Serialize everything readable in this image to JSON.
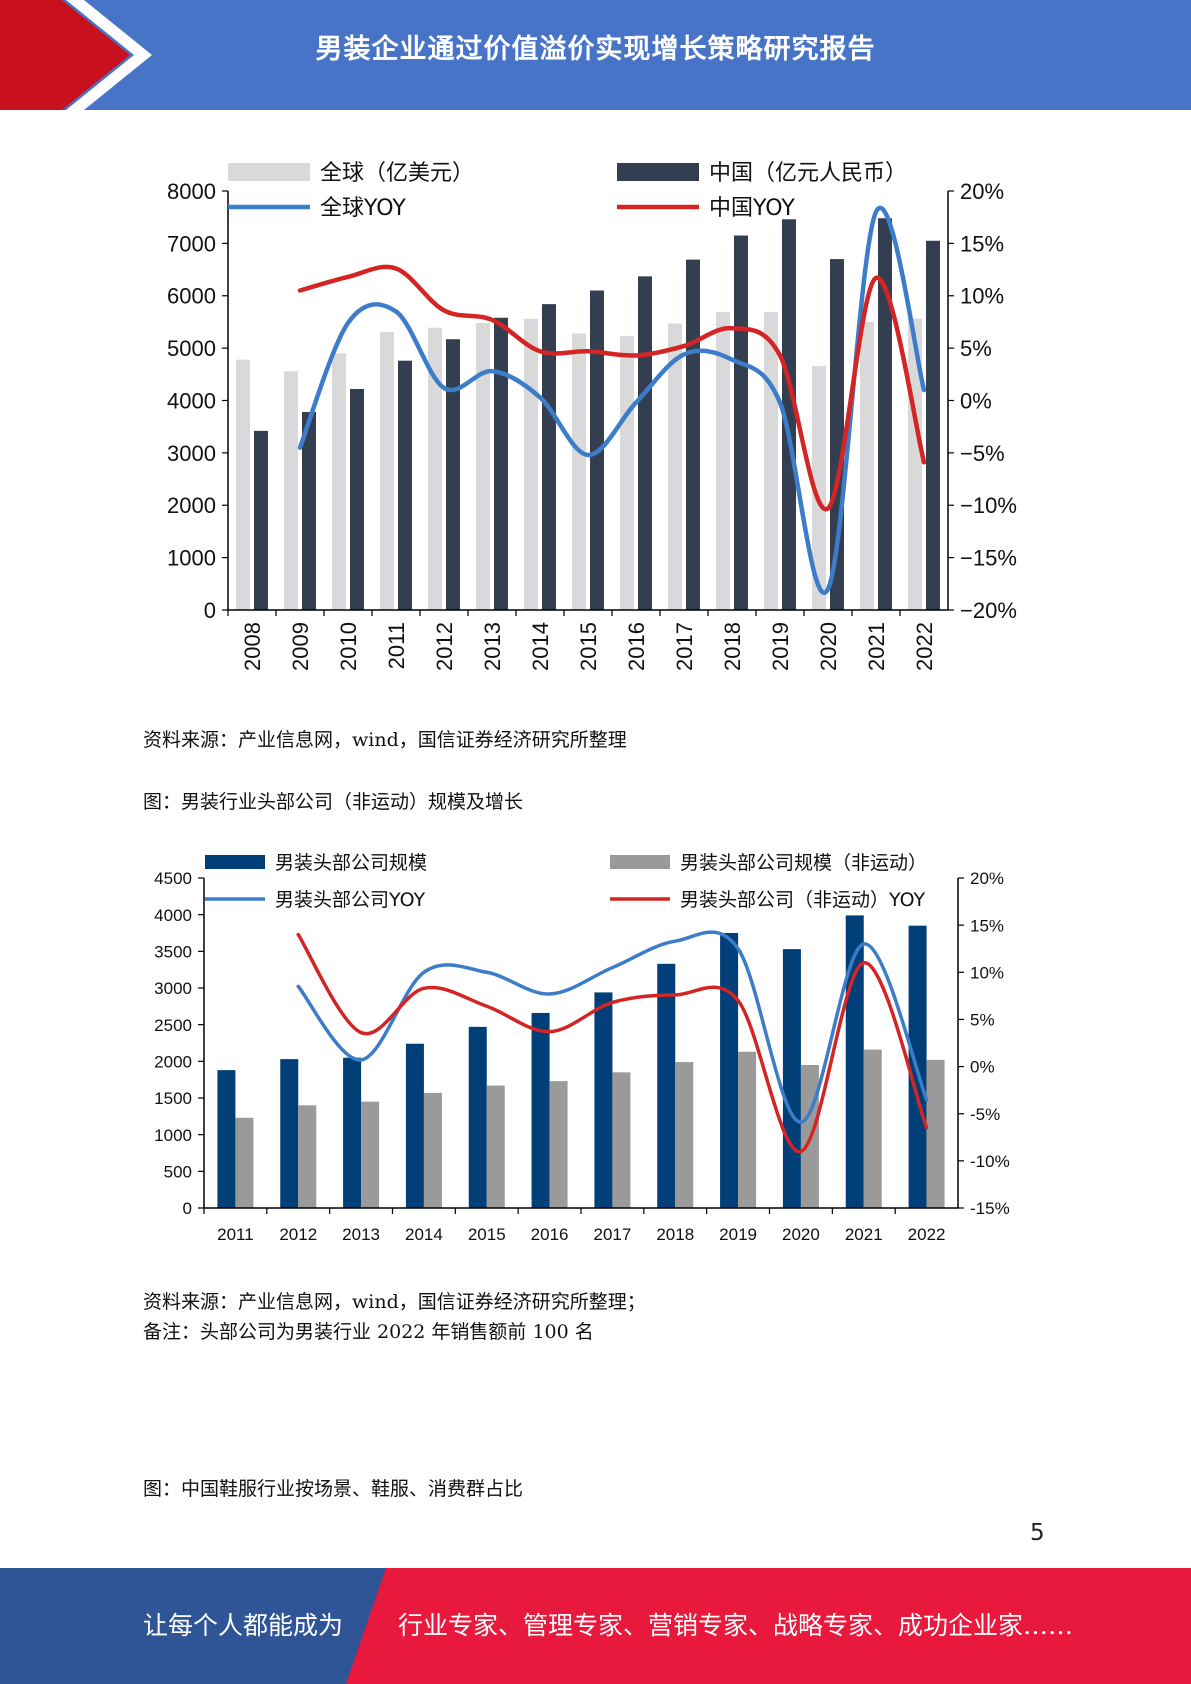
{
  "header": {
    "title": "男装企业通过价值溢价实现增长策略研究报告"
  },
  "charts": {
    "chart_data": [
      {
        "type": "bar",
        "categories": [
          "2008",
          "2009",
          "2010",
          "2011",
          "2012",
          "2013",
          "2014",
          "2015",
          "2016",
          "2017",
          "2018",
          "2019",
          "2020",
          "2021",
          "2022"
        ],
        "series": [
          {
            "name": "全球（亿美元）",
            "kind": "bar",
            "axis": "left",
            "color": "#d9d9d9",
            "values": [
              4780,
              4560,
              4900,
              5310,
              5390,
              5480,
              5560,
              5280,
              5230,
              5470,
              5690,
              5690,
              4660,
              5500,
              5560
            ]
          },
          {
            "name": "中国（亿元人民币）",
            "kind": "bar",
            "axis": "left",
            "color": "#333f50",
            "values": [
              3420,
              3780,
              4220,
              4760,
              5170,
              5580,
              5840,
              6100,
              6370,
              6690,
              7150,
              7460,
              6700,
              7480,
              7050
            ]
          },
          {
            "name": "全球YOY",
            "kind": "line",
            "axis": "right",
            "color": "#3d7cc9",
            "values": [
              null,
              -4.5,
              7.4,
              8.5,
              1.2,
              2.8,
              0.3,
              -5.2,
              -0.2,
              4.4,
              3.9,
              -0.2,
              -18.0,
              18.0,
              1.0
            ]
          },
          {
            "name": "中国YOY",
            "kind": "line",
            "axis": "right",
            "color": "#d42424",
            "values": [
              null,
              10.5,
              11.8,
              12.6,
              8.6,
              7.7,
              4.7,
              4.7,
              4.3,
              5.2,
              6.9,
              4.3,
              -10.3,
              11.7,
              -5.9
            ]
          }
        ],
        "yleft": {
          "min": 0,
          "max": 8000,
          "ticks": [
            "0",
            "1000",
            "2000",
            "3000",
            "4000",
            "5000",
            "6000",
            "7000",
            "8000"
          ]
        },
        "yright": {
          "min": -20,
          "max": 20,
          "ticks": [
            "−20%",
            "−15%",
            "−10%",
            "−5%",
            "0%",
            "5%",
            "10%",
            "15%",
            "20%"
          ]
        },
        "legend": "top",
        "grid": false
      },
      {
        "type": "bar",
        "categories": [
          "2011",
          "2012",
          "2013",
          "2014",
          "2015",
          "2016",
          "2017",
          "2018",
          "2019",
          "2020",
          "2021",
          "2022"
        ],
        "series": [
          {
            "name": "男装头部公司规模",
            "kind": "bar",
            "axis": "left",
            "color": "#003f77",
            "values": [
              1880,
              2030,
              2050,
              2240,
              2470,
              2660,
              2940,
              3330,
              3750,
              3530,
              3990,
              3850
            ]
          },
          {
            "name": "男装头部公司规模（非运动）",
            "kind": "bar",
            "axis": "left",
            "color": "#9a9a9a",
            "values": [
              1230,
              1400,
              1450,
              1570,
              1670,
              1730,
              1850,
              1990,
              2130,
              1950,
              2160,
              2020
            ]
          },
          {
            "name": "男装头部公司YOY",
            "kind": "line",
            "axis": "right",
            "color": "#3d7cc9",
            "values": [
              null,
              8.5,
              0.7,
              10.0,
              10.0,
              7.7,
              10.5,
              13.3,
              12.5,
              -5.9,
              13.0,
              -3.5
            ]
          },
          {
            "name": "男装头部公司（非运动）YOY",
            "kind": "line",
            "axis": "right",
            "color": "#d42424",
            "values": [
              null,
              14.0,
              3.6,
              8.3,
              6.4,
              3.7,
              6.8,
              7.6,
              7.0,
              -9.0,
              11.0,
              -6.5
            ]
          }
        ],
        "yleft": {
          "min": 0,
          "max": 4500,
          "ticks": [
            "0",
            "500",
            "1000",
            "1500",
            "2000",
            "2500",
            "3000",
            "3500",
            "4000",
            "4500"
          ]
        },
        "yright": {
          "min": -15,
          "max": 20,
          "ticks": [
            "-15%",
            "-10%",
            "-5%",
            "0%",
            "5%",
            "10%",
            "15%",
            "20%"
          ]
        },
        "legend": "top",
        "grid": false
      }
    ]
  },
  "captions": {
    "source1": "资料来源：产业信息网，wind，国信证券经济研究所整理",
    "fig2_title": "图：男装行业头部公司（非运动）规模及增长",
    "source2": "资料来源：产业信息网，wind，国信证券经济研究所整理；",
    "note2": "备注：头部公司为男装行业 2022 年销售额前 100 名",
    "fig3_title": "图：中国鞋服行业按场景、鞋服、消费群占比"
  },
  "page": {
    "number": "5"
  },
  "footer": {
    "left": "让每个人都能成为",
    "right": "行业专家、管理专家、营销专家、战略专家、成功企业家……"
  }
}
